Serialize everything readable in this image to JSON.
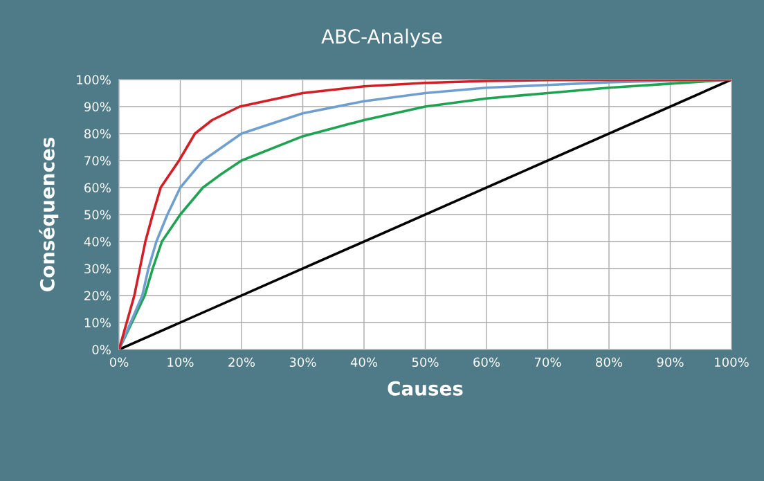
{
  "chart_data": {
    "type": "line",
    "title": "ABC-Analyse",
    "xlabel": "Causes",
    "ylabel": "Conséquences",
    "xlim": [
      0,
      100
    ],
    "ylim": [
      0,
      100
    ],
    "xticks": [
      {
        "value": 0,
        "label": "0%"
      },
      {
        "value": 10,
        "label": "10%"
      },
      {
        "value": 20,
        "label": "20%"
      },
      {
        "value": 30,
        "label": "30%"
      },
      {
        "value": 40,
        "label": "40%"
      },
      {
        "value": 50,
        "label": "50%"
      },
      {
        "value": 60,
        "label": "60%"
      },
      {
        "value": 70,
        "label": "70%"
      },
      {
        "value": 80,
        "label": "80%"
      },
      {
        "value": 90,
        "label": "90%"
      },
      {
        "value": 100,
        "label": "100%"
      }
    ],
    "yticks": [
      {
        "value": 0,
        "label": "0%"
      },
      {
        "value": 10,
        "label": "10%"
      },
      {
        "value": 20,
        "label": "20%"
      },
      {
        "value": 30,
        "label": "30%"
      },
      {
        "value": 40,
        "label": "40%"
      },
      {
        "value": 50,
        "label": "50%"
      },
      {
        "value": 60,
        "label": "60%"
      },
      {
        "value": 70,
        "label": "70%"
      },
      {
        "value": 80,
        "label": "80%"
      },
      {
        "value": 90,
        "label": "90%"
      },
      {
        "value": 100,
        "label": "100%"
      }
    ],
    "grid": true,
    "marker": "none",
    "line_style": "solid",
    "series": [
      {
        "color": "#000000",
        "x": [
          0,
          100
        ],
        "values": [
          0,
          100
        ]
      },
      {
        "color": "#1fa352",
        "x": [
          0,
          4.2,
          5.5,
          7,
          10,
          13.7,
          16.7,
          20,
          30,
          40,
          50,
          60,
          70,
          80,
          90,
          100
        ],
        "values": [
          0,
          20,
          30,
          40,
          50,
          60,
          65,
          70,
          79,
          85,
          90,
          93,
          95,
          97,
          98.5,
          100
        ]
      },
      {
        "color": "#6f9fcf",
        "x": [
          0,
          3.8,
          4.8,
          6.1,
          7.9,
          10,
          13.7,
          20,
          30,
          40,
          50,
          60,
          70,
          80,
          90,
          100
        ],
        "values": [
          0,
          20,
          30,
          40,
          50,
          60,
          70,
          80,
          87.5,
          92,
          95,
          97,
          98,
          99,
          99.6,
          100
        ]
      },
      {
        "color": "#d21f26",
        "x": [
          0,
          2.5,
          3.4,
          4.3,
          5.5,
          6.8,
          9.8,
          12.4,
          15.2,
          19.7,
          30,
          40,
          50,
          60,
          70,
          100
        ],
        "values": [
          0,
          20,
          30,
          40,
          50,
          60,
          70,
          80,
          85,
          90,
          95,
          97.5,
          98.8,
          99.5,
          99.8,
          100
        ]
      }
    ]
  }
}
